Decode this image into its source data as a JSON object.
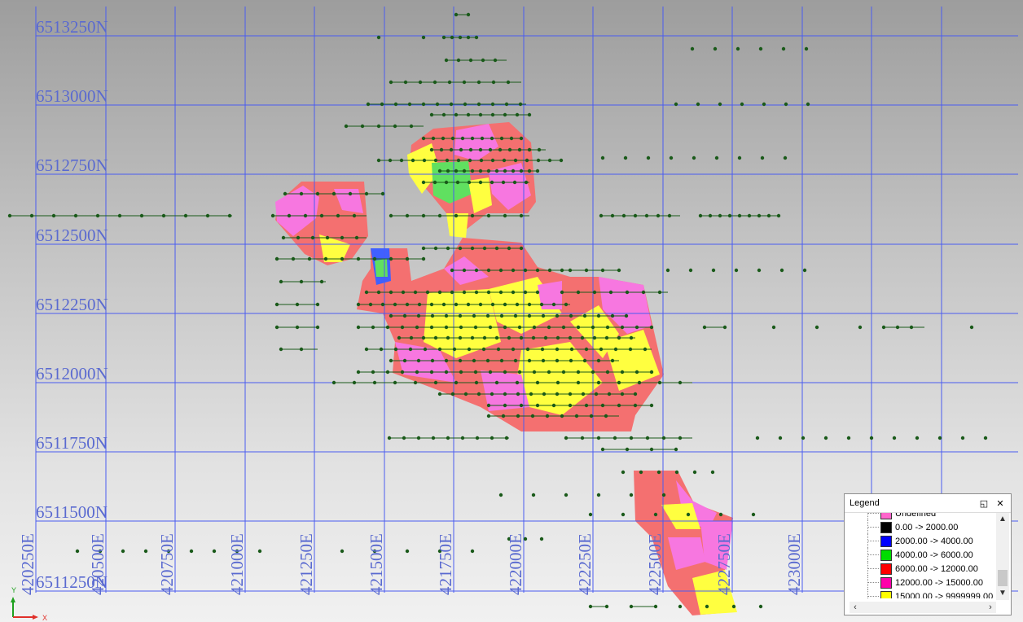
{
  "map": {
    "northing_labels": [
      "6513250N",
      "6513000N",
      "6512750N",
      "6512500N",
      "6512250N",
      "6512000N",
      "6511750N",
      "6511500N",
      "6511250N"
    ],
    "easting_labels": [
      "420250E",
      "420500E",
      "420750E",
      "421000E",
      "421250E",
      "421500E",
      "421750E",
      "422000E",
      "422250E",
      "422500E",
      "422750E",
      "423000E"
    ],
    "grid_color": "#4a5cf0",
    "label_color": "#5a6ad0",
    "drillhole_color": "#1a5a1a"
  },
  "legend": {
    "title": "Legend",
    "restore_icon": "restore-icon",
    "close_icon": "close-icon",
    "items": [
      {
        "label": "Undefined",
        "color": "#ff66cc"
      },
      {
        "label": "0.00 -> 2000.00",
        "color": "#000000"
      },
      {
        "label": "2000.00 -> 4000.00",
        "color": "#0000ff"
      },
      {
        "label": "4000.00 -> 6000.00",
        "color": "#00dd00"
      },
      {
        "label": "6000.00 -> 12000.00",
        "color": "#ff0000"
      },
      {
        "label": "12000.00 -> 15000.00",
        "color": "#ff00aa"
      },
      {
        "label": "15000.00 -> 9999999.00",
        "color": "#ffff00"
      }
    ]
  },
  "axes": {
    "y_label": "Y",
    "x_label": "X"
  }
}
